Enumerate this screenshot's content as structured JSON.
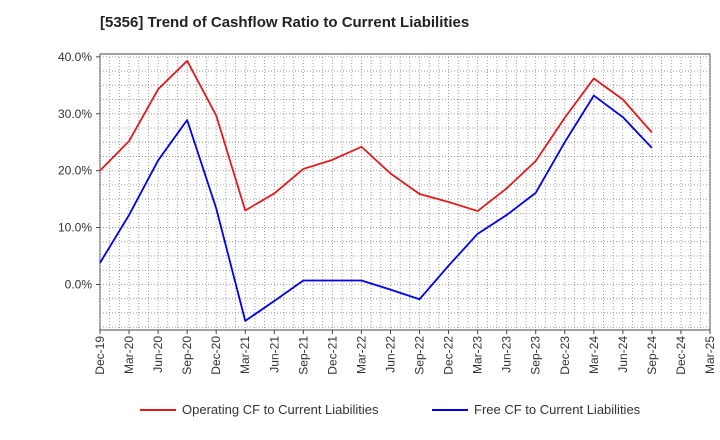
{
  "chart_data": {
    "type": "line",
    "title": "[5356]  Trend of Cashflow Ratio to Current Liabilities",
    "xlabel": "",
    "ylabel": "",
    "ylim": [
      -8,
      40.5
    ],
    "y_ticks": [
      40,
      30,
      20,
      10,
      0
    ],
    "y_tick_labels": [
      "40.0%",
      "30.0%",
      "20.0%",
      "10.0%",
      "0.0%"
    ],
    "categories": [
      "Dec-19",
      "Mar-20",
      "Jun-20",
      "Sep-20",
      "Dec-20",
      "Mar-21",
      "Jun-21",
      "Sep-21",
      "Dec-21",
      "Mar-22",
      "Jun-22",
      "Sep-22",
      "Dec-22",
      "Mar-23",
      "Jun-23",
      "Sep-23",
      "Dec-23",
      "Mar-24",
      "Jun-24",
      "Sep-24",
      "Dec-24",
      "Mar-25"
    ],
    "grid": true,
    "legend_position": "bottom",
    "series": [
      {
        "name": "Operating CF to Current Liabilities",
        "color": "#e31a1c",
        "values": [
          20.0,
          25.2,
          34.3,
          39.3,
          29.7,
          13.0,
          16.0,
          20.3,
          21.9,
          24.2,
          19.5,
          15.9,
          14.5,
          12.9,
          16.9,
          21.7,
          29.3,
          36.2,
          32.5,
          26.7,
          null,
          null
        ]
      },
      {
        "name": "Free CF to Current Liabilities",
        "color": "#0000ee",
        "values": [
          3.8,
          12.2,
          21.8,
          28.9,
          13.4,
          -6.4,
          -2.9,
          0.7,
          0.7,
          0.7,
          -0.9,
          -2.6,
          3.3,
          8.9,
          12.2,
          16.1,
          25.0,
          33.2,
          29.4,
          24.0,
          null,
          null
        ]
      }
    ]
  }
}
